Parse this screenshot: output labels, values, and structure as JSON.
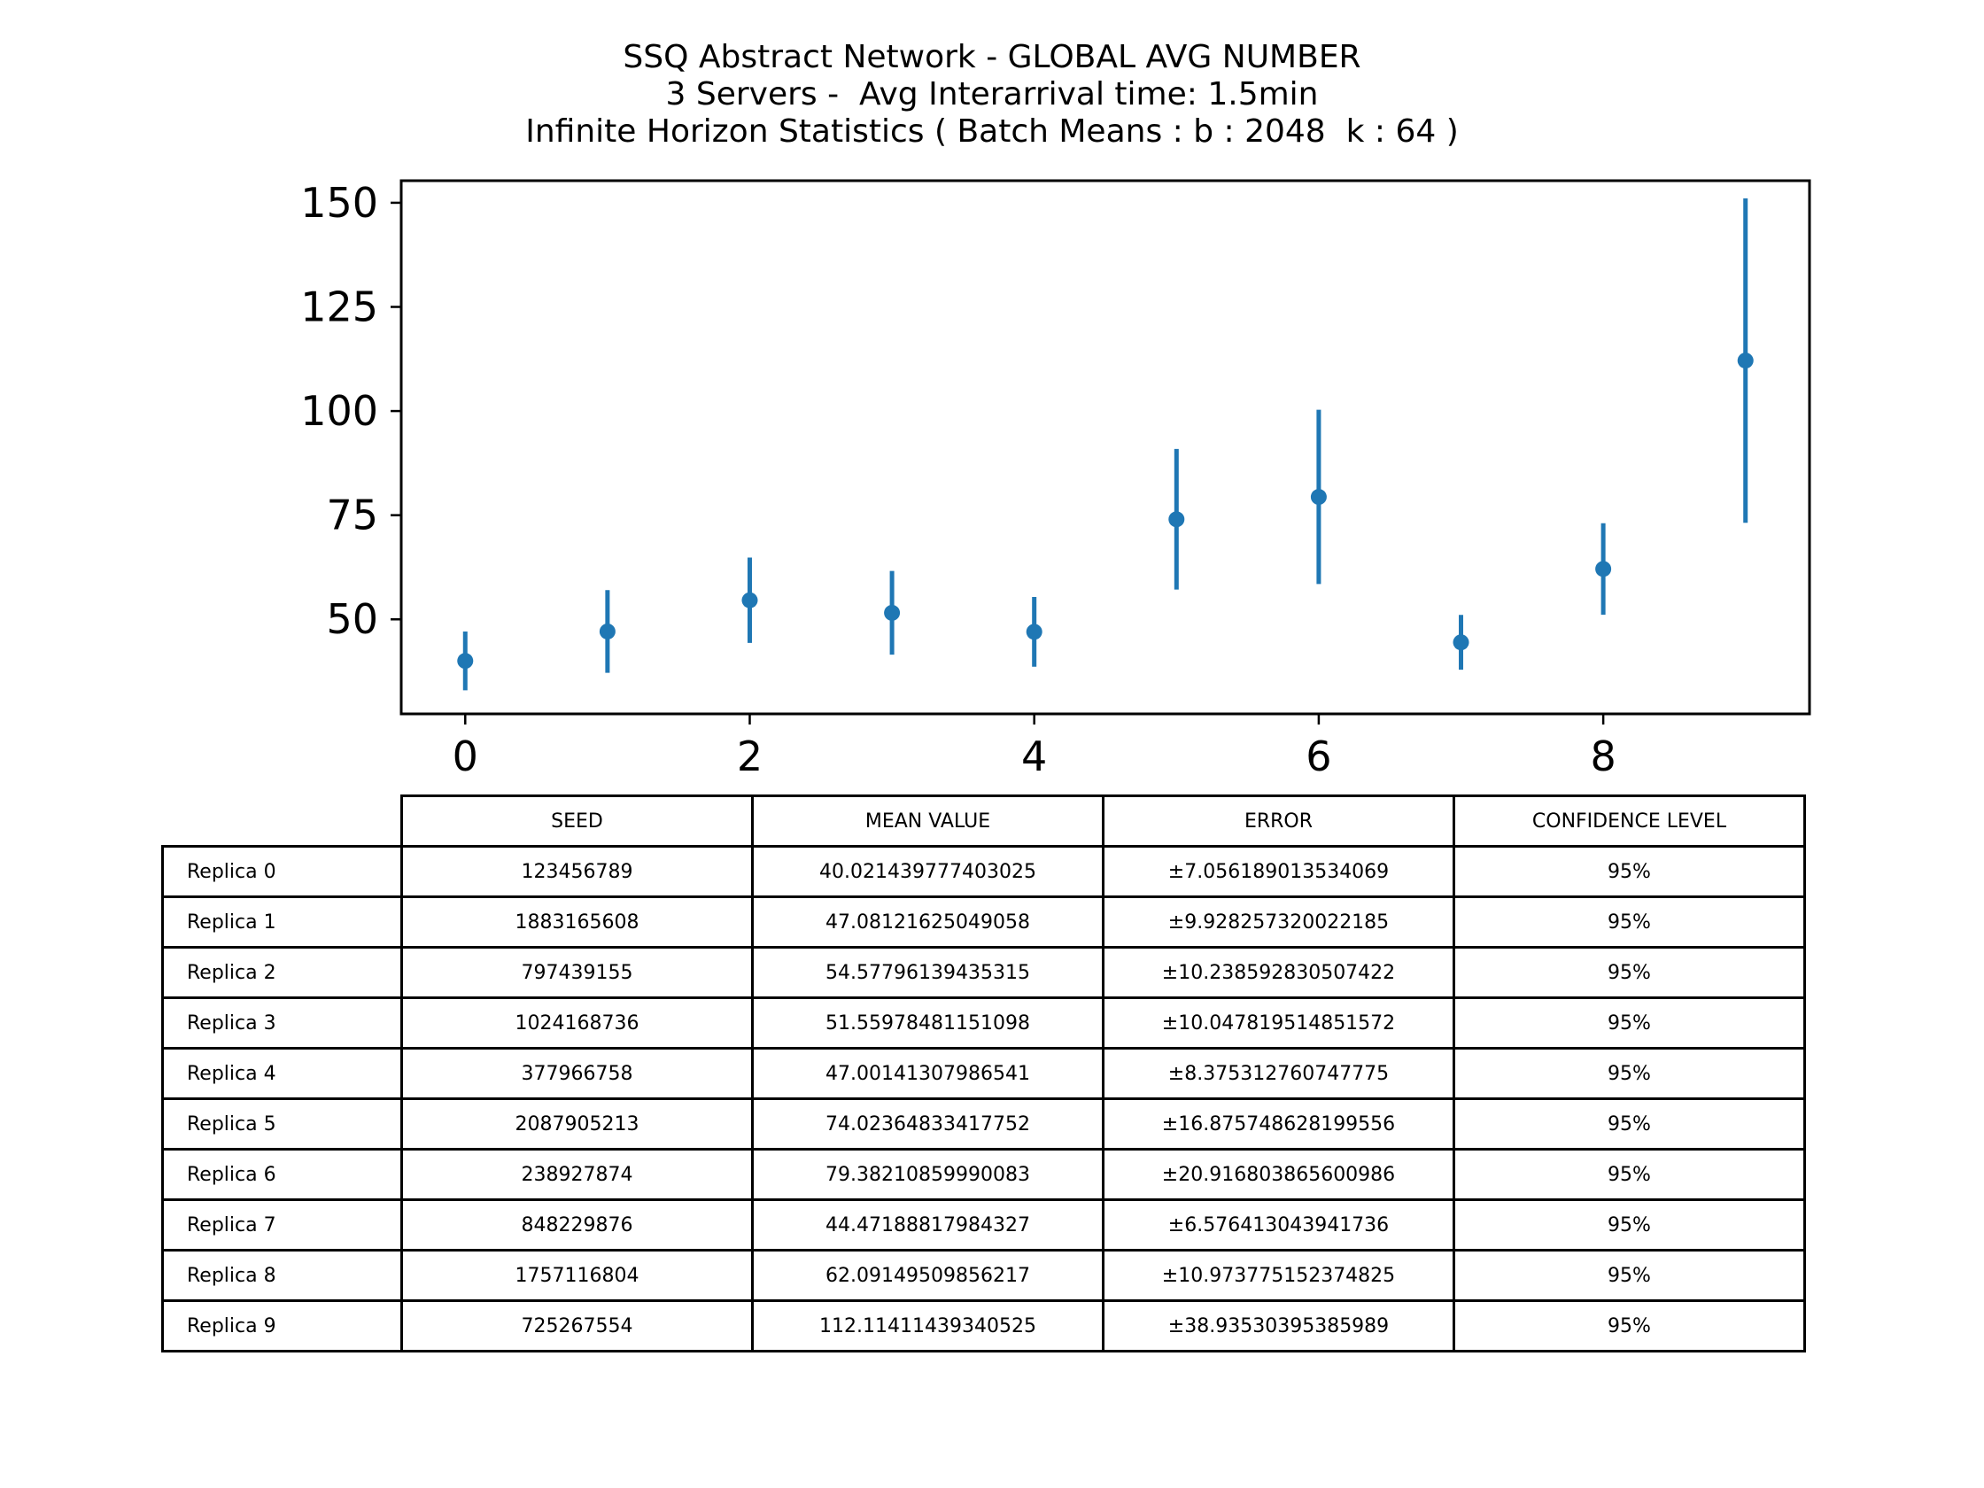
{
  "chart_data": {
    "type": "scatter",
    "title": [
      "SSQ Abstract Network - GLOBAL AVG NUMBER",
      "3 Servers -  Avg Interarrival time: 1.5min",
      "Infinite Horizon Statistics ( Batch Means : b : 2048  k : 64 )"
    ],
    "xlabel": "",
    "ylabel": "",
    "x": [
      0,
      1,
      2,
      3,
      4,
      5,
      6,
      7,
      8,
      9
    ],
    "y": [
      40.021439777403025,
      47.08121625049058,
      54.57796139435315,
      51.55978481151098,
      47.00141307986541,
      74.02364833417752,
      79.38210859990083,
      44.47188817984327,
      62.09149509856217,
      112.11411439340525
    ],
    "yerr": [
      7.056189013534069,
      9.928257320022185,
      10.238592830507422,
      10.047819514851572,
      8.375312760747775,
      16.875748628199556,
      20.916803865600986,
      6.576413043941736,
      10.973775152374825,
      38.93530395385989
    ],
    "xlim": [
      -0.45,
      9.45
    ],
    "ylim": [
      27.3,
      155.3
    ],
    "xticks": [
      "0",
      "2",
      "4",
      "6",
      "8"
    ],
    "yticks": [
      "50",
      "75",
      "100",
      "125",
      "150"
    ],
    "grid": false,
    "color": "#1f77b4"
  },
  "table": {
    "columns": [
      "SEED",
      "MEAN VALUE",
      "ERROR",
      "CONFIDENCE LEVEL"
    ],
    "rows": [
      {
        "label": "Replica 0",
        "cells": [
          "123456789",
          "40.021439777403025",
          "±7.056189013534069",
          "95%"
        ]
      },
      {
        "label": "Replica 1",
        "cells": [
          "1883165608",
          "47.08121625049058",
          "±9.928257320022185",
          "95%"
        ]
      },
      {
        "label": "Replica 2",
        "cells": [
          "797439155",
          "54.57796139435315",
          "±10.238592830507422",
          "95%"
        ]
      },
      {
        "label": "Replica 3",
        "cells": [
          "1024168736",
          "51.55978481151098",
          "±10.047819514851572",
          "95%"
        ]
      },
      {
        "label": "Replica 4",
        "cells": [
          "377966758",
          "47.00141307986541",
          "±8.375312760747775",
          "95%"
        ]
      },
      {
        "label": "Replica 5",
        "cells": [
          "2087905213",
          "74.02364833417752",
          "±16.875748628199556",
          "95%"
        ]
      },
      {
        "label": "Replica 6",
        "cells": [
          "238927874",
          "79.38210859990083",
          "±20.916803865600986",
          "95%"
        ]
      },
      {
        "label": "Replica 7",
        "cells": [
          "848229876",
          "44.47188817984327",
          "±6.576413043941736",
          "95%"
        ]
      },
      {
        "label": "Replica 8",
        "cells": [
          "1757116804",
          "62.09149509856217",
          "±10.973775152374825",
          "95%"
        ]
      },
      {
        "label": "Replica 9",
        "cells": [
          "725267554",
          "112.11411439340525",
          "±38.93530395385989",
          "95%"
        ]
      }
    ]
  }
}
